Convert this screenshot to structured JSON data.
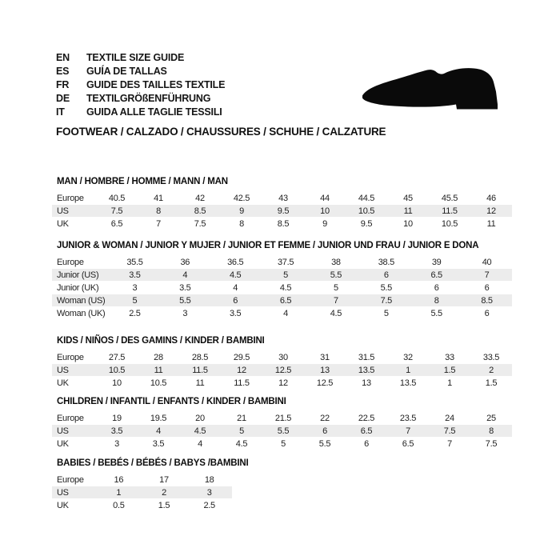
{
  "header": {
    "languages": [
      {
        "code": "EN",
        "label": "TEXTILE SIZE GUIDE"
      },
      {
        "code": "ES",
        "label": "GUÍA DE TALLAS"
      },
      {
        "code": "FR",
        "label": "GUIDE DES TAILLES TEXTILE"
      },
      {
        "code": "DE",
        "label": "TEXTILGRÖßENFÜHRUNG"
      },
      {
        "code": "IT",
        "label": "GUIDA ALLE TAGLIE TESSILI"
      }
    ],
    "category_title": "FOOTWEAR / CALZADO / CHAUSSURES / SCHUHE / CALZATURE",
    "shoe_icon": "dress-shoe-silhouette"
  },
  "colors": {
    "europe_row_bg": "#c6c6c6",
    "alt_row_bg": "#ececec",
    "text": "#1e1e1e",
    "shoe": "#0a0a0a"
  },
  "size_tables": [
    {
      "id": "man",
      "title": "MAN / HOMBRE / HOMME / MANN / MAN",
      "rows": [
        {
          "label": "Europe",
          "values": [
            "40.5",
            "41",
            "42",
            "42.5",
            "43",
            "44",
            "44.5",
            "45",
            "45.5",
            "46"
          ]
        },
        {
          "label": "US",
          "values": [
            "7.5",
            "8",
            "8.5",
            "9",
            "9.5",
            "10",
            "10.5",
            "11",
            "11.5",
            "12"
          ]
        },
        {
          "label": "UK",
          "values": [
            "6.5",
            "7",
            "7.5",
            "8",
            "8.5",
            "9",
            "9.5",
            "10",
            "10.5",
            "11"
          ]
        }
      ]
    },
    {
      "id": "junior-woman",
      "title": "JUNIOR & WOMAN / JUNIOR Y MUJER / JUNIOR ET FEMME / JUNIOR UND FRAU / JUNIOR E DONA",
      "rows": [
        {
          "label": "Europe",
          "values": [
            "35.5",
            "36",
            "36.5",
            "37.5",
            "38",
            "38.5",
            "39",
            "40"
          ]
        },
        {
          "label": "Junior (US)",
          "values": [
            "3.5",
            "4",
            "4.5",
            "5",
            "5.5",
            "6",
            "6.5",
            "7"
          ]
        },
        {
          "label": "Junior (UK)",
          "values": [
            "3",
            "3.5",
            "4",
            "4.5",
            "5",
            "5.5",
            "6",
            "6"
          ]
        },
        {
          "label": "Woman (US)",
          "values": [
            "5",
            "5.5",
            "6",
            "6.5",
            "7",
            "7.5",
            "8",
            "8.5"
          ]
        },
        {
          "label": "Woman (UK)",
          "values": [
            "2.5",
            "3",
            "3.5",
            "4",
            "4.5",
            "5",
            "5.5",
            "6"
          ]
        }
      ]
    },
    {
      "id": "kids",
      "title": "KIDS / NIÑOS / DES GAMINS / KINDER / BAMBINI",
      "rows": [
        {
          "label": "Europe",
          "values": [
            "27.5",
            "28",
            "28.5",
            "29.5",
            "30",
            "31",
            "31.5",
            "32",
            "33",
            "33.5"
          ]
        },
        {
          "label": "US",
          "values": [
            "10.5",
            "11",
            "11.5",
            "12",
            "12.5",
            "13",
            "13.5",
            "1",
            "1.5",
            "2"
          ]
        },
        {
          "label": "UK",
          "values": [
            "10",
            "10.5",
            "11",
            "11.5",
            "12",
            "12.5",
            "13",
            "13.5",
            "1",
            "1.5"
          ]
        }
      ]
    },
    {
      "id": "children",
      "title": "CHILDREN / INFANTIL / ENFANTS / KINDER / BAMBINI",
      "rows": [
        {
          "label": "Europe",
          "values": [
            "19",
            "19.5",
            "20",
            "21",
            "21.5",
            "22",
            "22.5",
            "23.5",
            "24",
            "25"
          ]
        },
        {
          "label": "US",
          "values": [
            "3.5",
            "4",
            "4.5",
            "5",
            "5.5",
            "6",
            "6.5",
            "7",
            "7.5",
            "8"
          ]
        },
        {
          "label": "UK",
          "values": [
            "3",
            "3.5",
            "4",
            "4.5",
            "5",
            "5.5",
            "6",
            "6.5",
            "7",
            "7.5"
          ]
        }
      ]
    },
    {
      "id": "babies",
      "title": "BABIES / BEBÉS / BÉBÉS / BABYS /BAMBINI",
      "rows": [
        {
          "label": "Europe",
          "values": [
            "16",
            "17",
            "18"
          ]
        },
        {
          "label": "US",
          "values": [
            "1",
            "2",
            "3"
          ]
        },
        {
          "label": "UK",
          "values": [
            "0.5",
            "1.5",
            "2.5"
          ]
        }
      ]
    }
  ]
}
